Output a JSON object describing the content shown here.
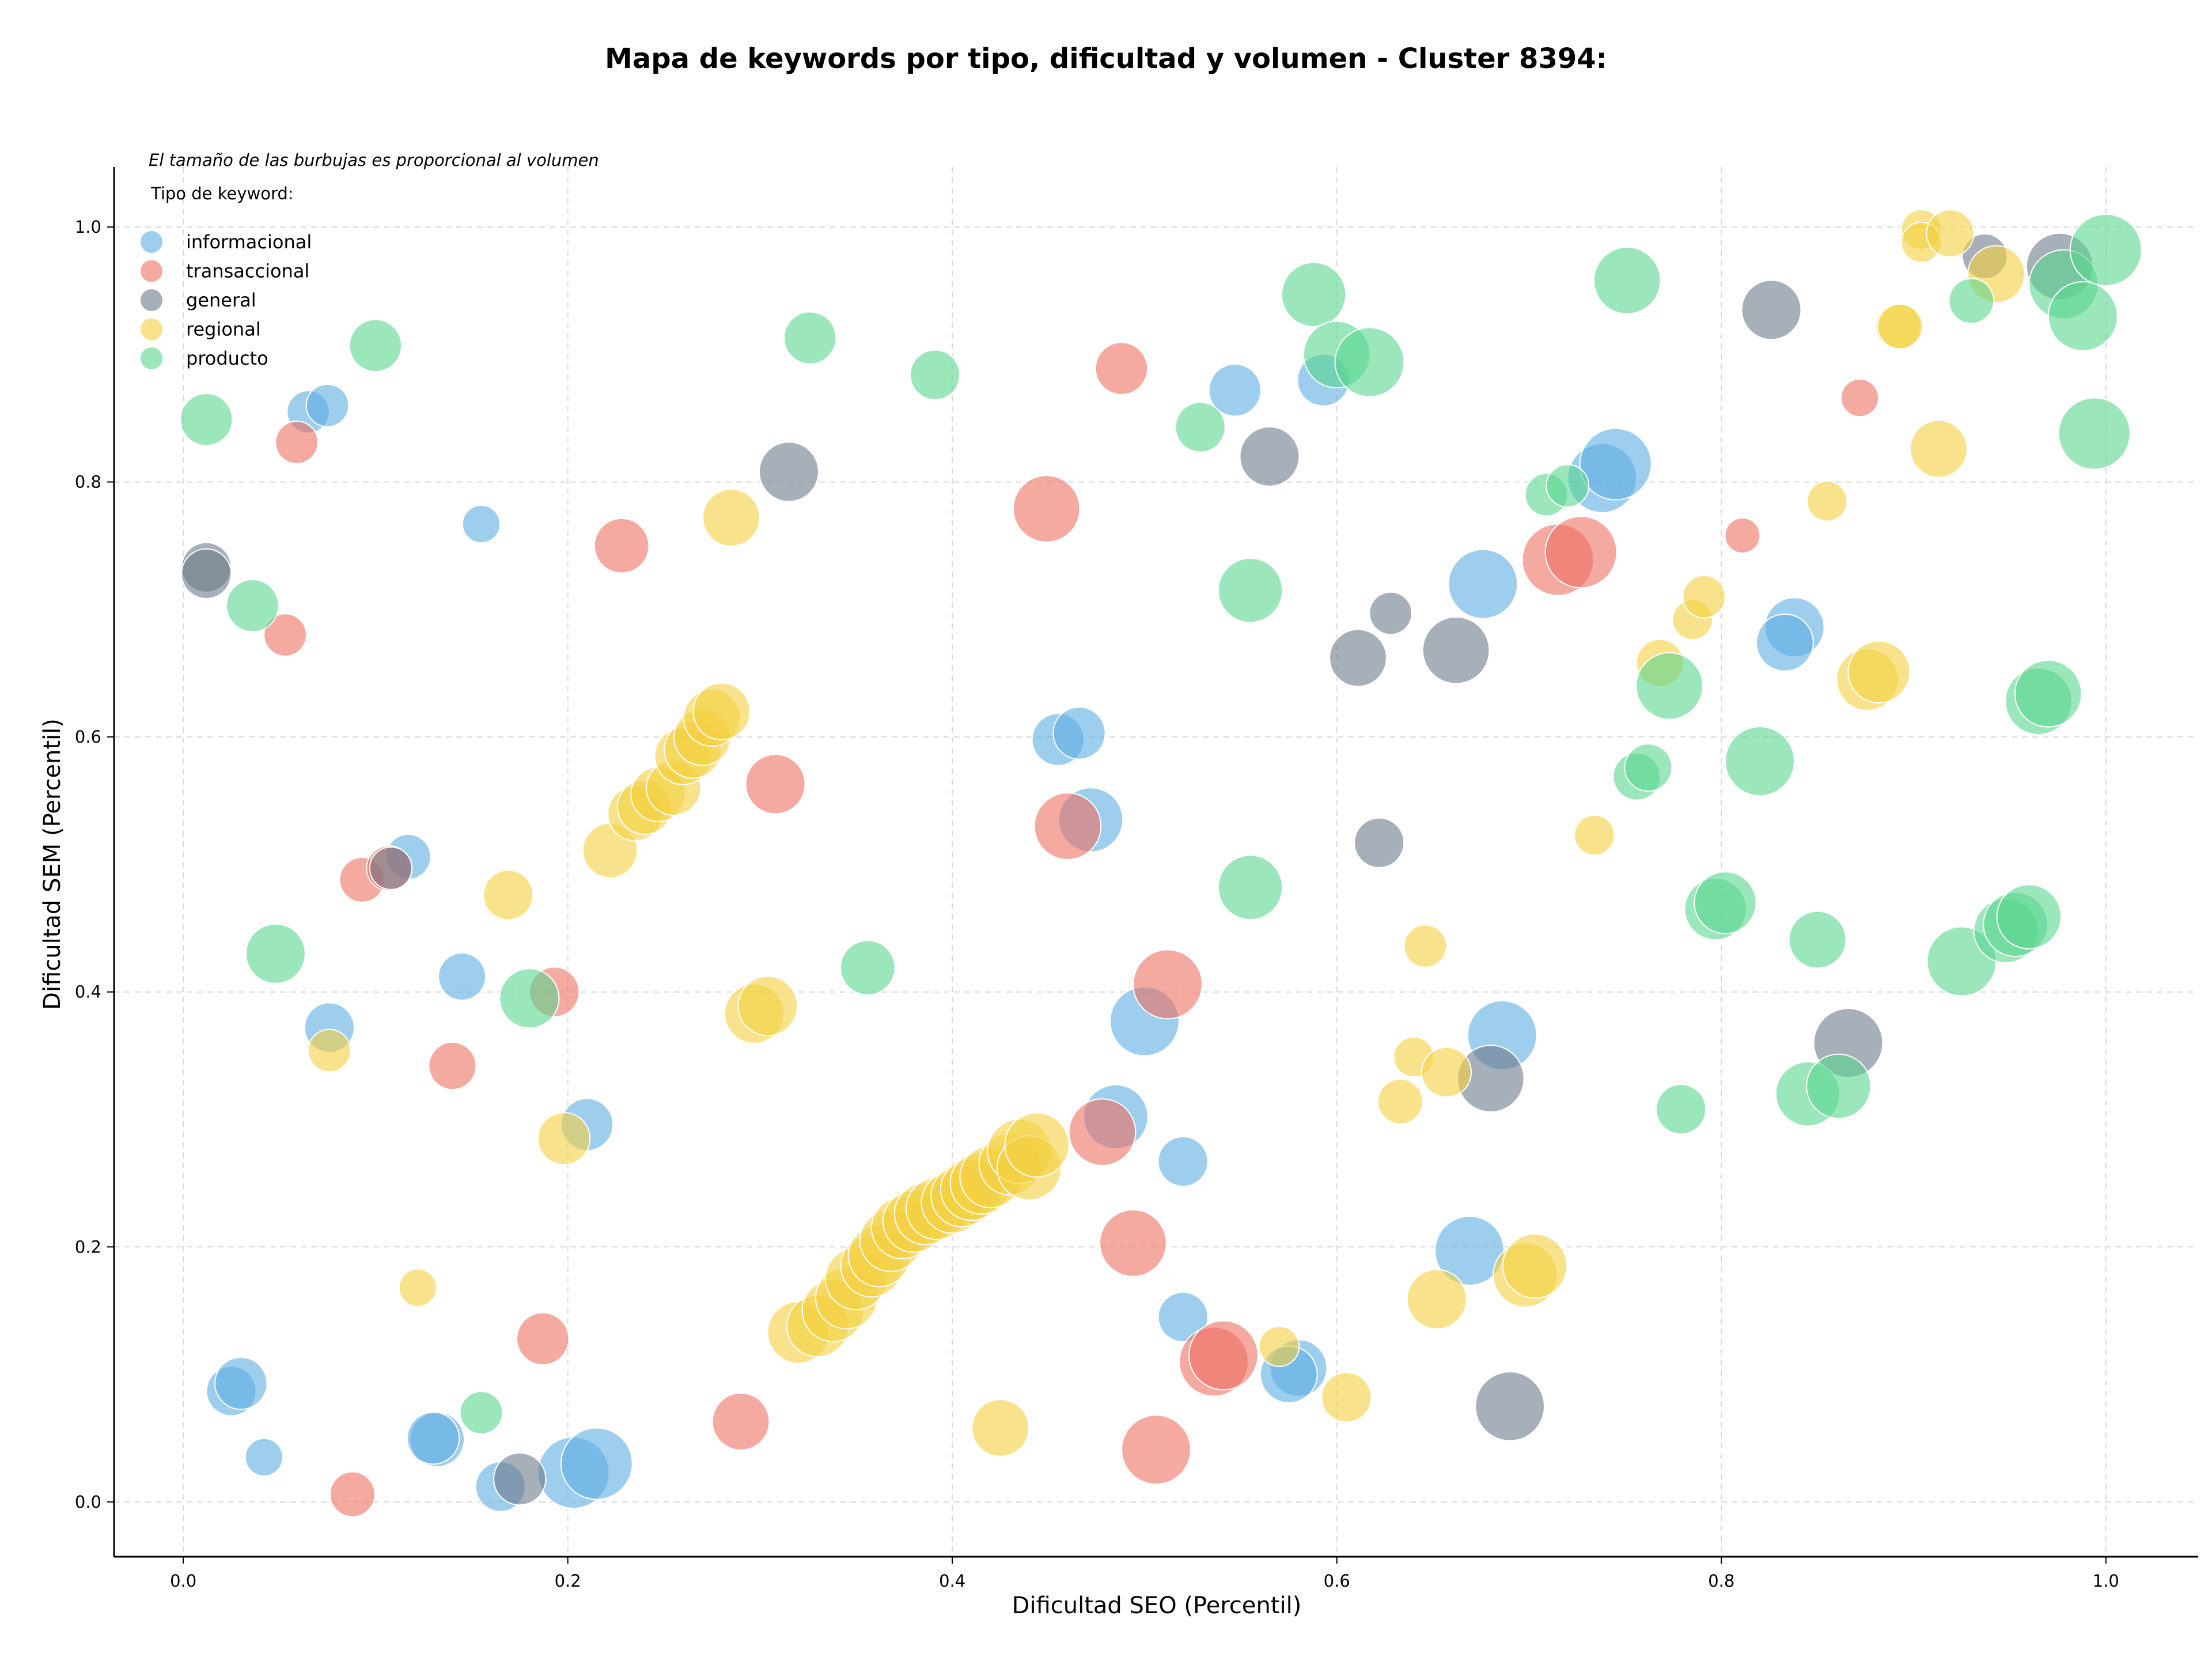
{
  "chart_data": {
    "type": "scatter",
    "title": "Mapa de keywords por tipo, dificultad y volumen - Cluster 8394:",
    "xlabel": "Dificultad SEO (Percentil)",
    "ylabel": "Dificultad SEM (Percentil)",
    "xlim": [
      -0.036,
      1.048
    ],
    "ylim": [
      -0.043,
      1.047
    ],
    "xticks": [
      "0.0",
      "0.2",
      "0.4",
      "0.6",
      "0.8",
      "1.0"
    ],
    "yticks": [
      "0.0",
      "0.2",
      "0.4",
      "0.6",
      "0.8",
      "1.0"
    ],
    "grid": true,
    "annotation": "El tamaño de las burbujas es proporcional al volumen",
    "legend": {
      "title": "Tipo de keyword:",
      "placement": "top-left",
      "entries": [
        "informacional",
        "transaccional",
        "general",
        "regional",
        "producto"
      ]
    },
    "series": [
      {
        "name": "informacional",
        "color": "#5DADE2",
        "points": [
          [
            0.065,
            0.855,
            0.4
          ],
          [
            0.075,
            0.86,
            0.4
          ],
          [
            0.155,
            0.767,
            0.3
          ],
          [
            0.117,
            0.506,
            0.45
          ],
          [
            0.145,
            0.412,
            0.5
          ],
          [
            0.076,
            0.372,
            0.55
          ],
          [
            0.21,
            0.296,
            0.6
          ],
          [
            0.025,
            0.087,
            0.55
          ],
          [
            0.03,
            0.093,
            0.6
          ],
          [
            0.042,
            0.035,
            0.3
          ],
          [
            0.132,
            0.049,
            0.65
          ],
          [
            0.13,
            0.05,
            0.6
          ],
          [
            0.165,
            0.012,
            0.55
          ],
          [
            0.203,
            0.023,
            1.0
          ],
          [
            0.215,
            0.03,
            1.0
          ],
          [
            0.547,
            0.872,
            0.6
          ],
          [
            0.593,
            0.88,
            0.6
          ],
          [
            0.455,
            0.598,
            0.6
          ],
          [
            0.466,
            0.603,
            0.6
          ],
          [
            0.472,
            0.535,
            0.85
          ],
          [
            0.5,
            0.377,
            0.95
          ],
          [
            0.485,
            0.302,
            0.85
          ],
          [
            0.52,
            0.267,
            0.55
          ],
          [
            0.52,
            0.145,
            0.55
          ],
          [
            0.58,
            0.105,
            0.7
          ],
          [
            0.575,
            0.1,
            0.7
          ],
          [
            0.669,
            0.197,
            0.95
          ],
          [
            0.686,
            0.366,
            0.95
          ],
          [
            0.676,
            0.72,
            0.95
          ],
          [
            0.738,
            0.803,
            0.95
          ],
          [
            0.745,
            0.814,
            1.0
          ],
          [
            0.838,
            0.686,
            0.75
          ],
          [
            0.833,
            0.674,
            0.7
          ]
        ]
      },
      {
        "name": "transaccional",
        "color": "#EC7063",
        "points": [
          [
            0.059,
            0.831,
            0.4
          ],
          [
            0.053,
            0.68,
            0.4
          ],
          [
            0.093,
            0.488,
            0.45
          ],
          [
            0.107,
            0.497,
            0.45
          ],
          [
            0.14,
            0.342,
            0.5
          ],
          [
            0.193,
            0.4,
            0.55
          ],
          [
            0.187,
            0.128,
            0.6
          ],
          [
            0.088,
            0.006,
            0.45
          ],
          [
            0.228,
            0.75,
            0.65
          ],
          [
            0.308,
            0.563,
            0.75
          ],
          [
            0.29,
            0.063,
            0.7
          ],
          [
            0.449,
            0.779,
            0.9
          ],
          [
            0.46,
            0.53,
            0.9
          ],
          [
            0.488,
            0.889,
            0.6
          ],
          [
            0.512,
            0.406,
            0.95
          ],
          [
            0.478,
            0.29,
            0.9
          ],
          [
            0.494,
            0.203,
            0.9
          ],
          [
            0.506,
            0.041,
            0.95
          ],
          [
            0.536,
            0.11,
            0.95
          ],
          [
            0.541,
            0.115,
            0.95
          ],
          [
            0.715,
            0.739,
            1.0
          ],
          [
            0.727,
            0.745,
            1.0
          ],
          [
            0.811,
            0.758,
            0.25
          ],
          [
            0.872,
            0.866,
            0.3
          ]
        ]
      },
      {
        "name": "general",
        "color": "#6C7A89",
        "points": [
          [
            0.012,
            0.733,
            0.55
          ],
          [
            0.012,
            0.728,
            0.55
          ],
          [
            0.108,
            0.497,
            0.4
          ],
          [
            0.175,
            0.018,
            0.6
          ],
          [
            0.315,
            0.808,
            0.75
          ],
          [
            0.565,
            0.82,
            0.75
          ],
          [
            0.611,
            0.662,
            0.7
          ],
          [
            0.628,
            0.697,
            0.4
          ],
          [
            0.622,
            0.517,
            0.55
          ],
          [
            0.662,
            0.668,
            0.9
          ],
          [
            0.68,
            0.332,
            0.9
          ],
          [
            0.69,
            0.075,
            0.95
          ],
          [
            0.826,
            0.935,
            0.75
          ],
          [
            0.866,
            0.36,
            0.95
          ],
          [
            0.937,
            0.977,
            0.45
          ],
          [
            0.976,
            0.969,
            0.9
          ]
        ]
      },
      {
        "name": "regional",
        "color": "#F4D03F",
        "points": [
          [
            0.076,
            0.354,
            0.4
          ],
          [
            0.122,
            0.168,
            0.3
          ],
          [
            0.169,
            0.476,
            0.55
          ],
          [
            0.198,
            0.285,
            0.6
          ],
          [
            0.222,
            0.511,
            0.65
          ],
          [
            0.235,
            0.54,
            0.65
          ],
          [
            0.24,
            0.545,
            0.65
          ],
          [
            0.247,
            0.555,
            0.65
          ],
          [
            0.255,
            0.56,
            0.65
          ],
          [
            0.26,
            0.585,
            0.7
          ],
          [
            0.265,
            0.59,
            0.7
          ],
          [
            0.27,
            0.6,
            0.7
          ],
          [
            0.275,
            0.615,
            0.7
          ],
          [
            0.28,
            0.62,
            0.7
          ],
          [
            0.285,
            0.772,
            0.7
          ],
          [
            0.297,
            0.383,
            0.75
          ],
          [
            0.304,
            0.389,
            0.75
          ],
          [
            0.32,
            0.133,
            0.8
          ],
          [
            0.33,
            0.138,
            0.8
          ],
          [
            0.338,
            0.15,
            0.8
          ],
          [
            0.345,
            0.16,
            0.8
          ],
          [
            0.35,
            0.175,
            0.8
          ],
          [
            0.358,
            0.185,
            0.8
          ],
          [
            0.362,
            0.193,
            0.8
          ],
          [
            0.368,
            0.205,
            0.8
          ],
          [
            0.374,
            0.215,
            0.8
          ],
          [
            0.38,
            0.22,
            0.8
          ],
          [
            0.386,
            0.226,
            0.8
          ],
          [
            0.392,
            0.23,
            0.8
          ],
          [
            0.4,
            0.235,
            0.8
          ],
          [
            0.405,
            0.24,
            0.8
          ],
          [
            0.41,
            0.245,
            0.8
          ],
          [
            0.415,
            0.25,
            0.8
          ],
          [
            0.42,
            0.255,
            0.8
          ],
          [
            0.425,
            0.058,
            0.7
          ],
          [
            0.43,
            0.265,
            0.8
          ],
          [
            0.435,
            0.275,
            0.85
          ],
          [
            0.44,
            0.262,
            0.85
          ],
          [
            0.444,
            0.28,
            0.85
          ],
          [
            0.57,
            0.122,
            0.35
          ],
          [
            0.605,
            0.082,
            0.55
          ],
          [
            0.633,
            0.314,
            0.45
          ],
          [
            0.64,
            0.349,
            0.35
          ],
          [
            0.646,
            0.436,
            0.4
          ],
          [
            0.652,
            0.159,
            0.75
          ],
          [
            0.657,
            0.337,
            0.55
          ],
          [
            0.698,
            0.178,
            0.85
          ],
          [
            0.703,
            0.185,
            0.85
          ],
          [
            0.734,
            0.523,
            0.35
          ],
          [
            0.768,
            0.658,
            0.5
          ],
          [
            0.785,
            0.692,
            0.35
          ],
          [
            0.791,
            0.71,
            0.4
          ],
          [
            0.855,
            0.785,
            0.35
          ],
          [
            0.876,
            0.645,
            0.8
          ],
          [
            0.882,
            0.651,
            0.8
          ],
          [
            0.892,
            0.922,
            0.45
          ],
          [
            0.893,
            0.922,
            0.45
          ],
          [
            0.904,
            0.998,
            0.35
          ],
          [
            0.904,
            0.988,
            0.35
          ],
          [
            0.913,
            0.826,
            0.7
          ],
          [
            0.919,
            0.995,
            0.5
          ],
          [
            0.943,
            0.963,
            0.7
          ]
        ]
      },
      {
        "name": "producto",
        "color": "#58D68D",
        "points": [
          [
            0.012,
            0.849,
            0.6
          ],
          [
            0.036,
            0.703,
            0.6
          ],
          [
            0.048,
            0.43,
            0.75
          ],
          [
            0.1,
            0.907,
            0.6
          ],
          [
            0.18,
            0.395,
            0.75
          ],
          [
            0.155,
            0.07,
            0.4
          ],
          [
            0.326,
            0.913,
            0.6
          ],
          [
            0.356,
            0.419,
            0.65
          ],
          [
            0.391,
            0.884,
            0.55
          ],
          [
            0.529,
            0.843,
            0.55
          ],
          [
            0.555,
            0.715,
            0.85
          ],
          [
            0.555,
            0.482,
            0.85
          ],
          [
            0.588,
            0.947,
            0.85
          ],
          [
            0.6,
            0.9,
            0.9
          ],
          [
            0.617,
            0.894,
            0.95
          ],
          [
            0.709,
            0.79,
            0.4
          ],
          [
            0.72,
            0.797,
            0.4
          ],
          [
            0.751,
            0.958,
            0.9
          ],
          [
            0.756,
            0.569,
            0.5
          ],
          [
            0.762,
            0.576,
            0.5
          ],
          [
            0.773,
            0.64,
            0.9
          ],
          [
            0.779,
            0.308,
            0.55
          ],
          [
            0.797,
            0.465,
            0.8
          ],
          [
            0.802,
            0.47,
            0.8
          ],
          [
            0.82,
            0.581,
            0.95
          ],
          [
            0.85,
            0.441,
            0.7
          ],
          [
            0.845,
            0.32,
            0.85
          ],
          [
            0.861,
            0.326,
            0.85
          ],
          [
            0.925,
            0.424,
            0.95
          ],
          [
            0.93,
            0.942,
            0.45
          ],
          [
            0.948,
            0.448,
            0.85
          ],
          [
            0.953,
            0.453,
            0.85
          ],
          [
            0.96,
            0.459,
            0.85
          ],
          [
            0.965,
            0.628,
            0.9
          ],
          [
            0.97,
            0.634,
            0.9
          ],
          [
            0.978,
            0.955,
            0.95
          ],
          [
            0.988,
            0.93,
            0.95
          ],
          [
            0.994,
            0.838,
            1.0
          ],
          [
            1.0,
            0.982,
            1.0
          ]
        ]
      }
    ]
  }
}
